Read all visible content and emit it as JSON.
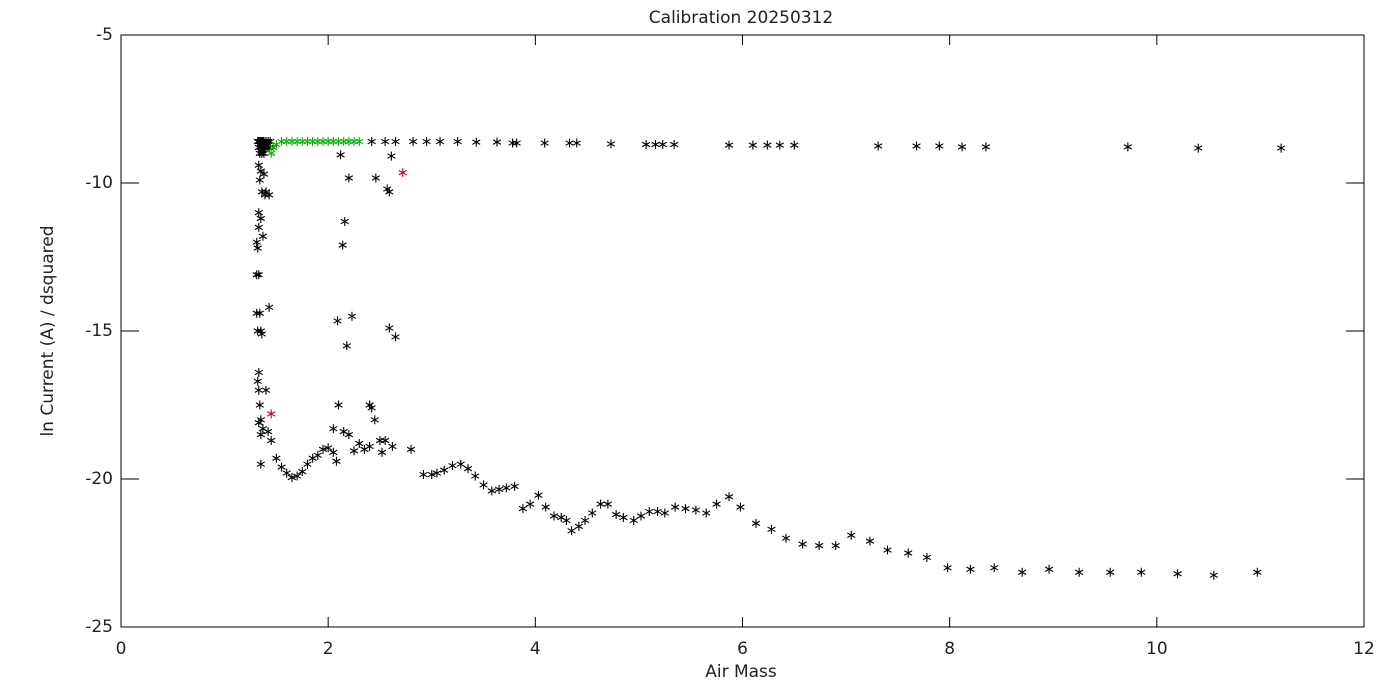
{
  "chart_data": {
    "type": "scatter",
    "title": "Calibration 20250312",
    "x_label": "Air Mass",
    "y_label": "ln Current (A) / dsquared",
    "xlim": [
      0,
      12
    ],
    "ylim": [
      -25,
      -5
    ],
    "xticks": [
      0,
      2,
      4,
      6,
      8,
      10,
      12
    ],
    "yticks": [
      -25,
      -20,
      -15,
      -10,
      -5
    ],
    "marker": "asterisk",
    "series": [
      {
        "color": "#000000",
        "x": [
          1.32,
          1.33,
          1.34,
          1.35,
          1.36,
          1.37,
          1.38,
          1.4,
          1.42,
          1.44,
          1.33,
          1.35,
          1.37,
          1.39,
          1.41,
          1.43,
          1.34,
          1.36,
          1.38,
          1.33,
          1.35,
          1.34,
          1.36,
          1.33,
          1.35,
          1.37,
          1.39,
          1.43,
          1.31,
          1.33,
          1.32,
          1.33,
          1.34,
          1.35,
          1.36,
          1.33,
          1.35,
          1.38,
          1.4,
          2.42,
          2.55,
          2.65,
          2.82,
          2.95,
          3.08,
          3.25,
          3.43,
          3.63,
          3.78,
          3.82,
          4.09,
          4.33,
          4.4,
          4.73,
          5.07,
          5.16,
          5.23,
          5.34,
          5.87,
          6.1,
          6.24,
          6.36,
          6.5,
          7.31,
          7.68,
          7.9,
          8.12,
          8.35,
          9.72,
          10.4,
          11.2,
          2.61,
          2.2,
          2.46,
          2.57,
          2.59,
          2.12,
          2.16,
          2.14,
          2.23,
          2.09,
          2.18,
          2.59,
          2.65,
          1.43,
          1.31,
          1.32,
          1.31,
          1.35,
          1.37,
          1.45,
          1.5,
          1.55,
          1.6,
          1.65,
          1.7,
          1.75,
          1.8,
          1.85,
          1.9,
          1.95,
          2.0,
          2.05,
          2.08,
          2.05,
          2.1,
          2.15,
          2.2,
          2.25,
          2.3,
          2.35,
          2.4,
          2.42,
          2.45,
          2.4,
          2.5,
          2.52,
          2.55,
          2.62,
          2.8,
          2.92,
          3.0,
          3.05,
          3.12,
          3.2,
          3.28,
          3.35,
          3.42,
          3.5,
          3.58,
          3.65,
          3.72,
          3.8,
          3.88,
          3.95,
          4.03,
          4.1,
          4.18,
          4.25,
          4.3,
          4.35,
          4.42,
          4.48,
          4.55,
          4.63,
          4.7,
          4.78,
          4.85,
          4.95,
          5.02,
          5.1,
          5.18,
          5.25,
          5.35,
          5.45,
          5.55,
          5.65,
          5.75,
          5.87,
          5.98,
          6.13,
          6.28,
          6.42,
          6.58,
          6.74,
          6.9,
          7.05,
          7.23,
          7.4,
          7.6,
          7.78,
          7.98,
          8.2,
          8.43,
          8.7,
          8.96,
          9.25,
          9.55,
          9.85,
          10.2,
          10.55,
          10.97,
          1.33,
          1.32,
          1.34,
          1.33,
          1.35,
          1.4,
          1.42
        ],
        "values": [
          -8.6,
          -8.6,
          -8.6,
          -8.6,
          -8.6,
          -8.6,
          -8.6,
          -8.6,
          -8.6,
          -8.6,
          -8.8,
          -8.8,
          -8.8,
          -8.8,
          -8.8,
          -8.8,
          -9.0,
          -9.0,
          -9.0,
          -9.4,
          -9.6,
          -9.9,
          -10.3,
          -11.0,
          -11.2,
          -11.8,
          -10.4,
          -10.4,
          -12.0,
          -11.5,
          -12.2,
          -13.1,
          -14.4,
          -15.0,
          -15.1,
          -17.0,
          -18.0,
          -9.7,
          -10.3,
          -8.6,
          -8.6,
          -8.6,
          -8.6,
          -8.6,
          -8.6,
          -8.6,
          -8.62,
          -8.62,
          -8.65,
          -8.65,
          -8.65,
          -8.65,
          -8.65,
          -8.68,
          -8.7,
          -8.7,
          -8.7,
          -8.7,
          -8.72,
          -8.72,
          -8.72,
          -8.72,
          -8.72,
          -8.75,
          -8.75,
          -8.75,
          -8.78,
          -8.78,
          -8.78,
          -8.82,
          -8.82,
          -9.09,
          -9.83,
          -9.83,
          -10.2,
          -10.3,
          -9.05,
          -11.3,
          -12.1,
          -14.5,
          -14.66,
          -15.5,
          -14.9,
          -15.2,
          -14.2,
          -14.4,
          -15.0,
          -13.1,
          -19.5,
          -18.3,
          -18.7,
          -19.3,
          -19.6,
          -19.8,
          -19.95,
          -19.9,
          -19.75,
          -19.5,
          -19.3,
          -19.2,
          -19.0,
          -18.95,
          -19.1,
          -19.4,
          -18.3,
          -17.5,
          -18.4,
          -18.5,
          -19.05,
          -18.8,
          -19.0,
          -17.5,
          -17.6,
          -18.0,
          -18.9,
          -18.7,
          -19.1,
          -18.7,
          -18.9,
          -19.0,
          -19.85,
          -19.85,
          -19.8,
          -19.7,
          -19.55,
          -19.5,
          -19.65,
          -19.9,
          -20.2,
          -20.4,
          -20.35,
          -20.3,
          -20.25,
          -21.0,
          -20.85,
          -20.55,
          -20.95,
          -21.25,
          -21.3,
          -21.4,
          -21.75,
          -21.6,
          -21.4,
          -21.15,
          -20.85,
          -20.85,
          -21.2,
          -21.3,
          -21.4,
          -21.25,
          -21.1,
          -21.1,
          -21.15,
          -20.95,
          -21.0,
          -21.05,
          -21.15,
          -20.85,
          -20.6,
          -20.95,
          -21.5,
          -21.7,
          -22.0,
          -22.2,
          -22.25,
          -22.25,
          -21.9,
          -22.1,
          -22.4,
          -22.5,
          -22.65,
          -23.0,
          -23.05,
          -23.0,
          -23.15,
          -23.05,
          -23.15,
          -23.15,
          -23.15,
          -23.2,
          -23.25,
          -23.15,
          -16.4,
          -16.7,
          -17.5,
          -18.1,
          -18.5,
          -17.0,
          -18.4
        ]
      },
      {
        "color": "#00b000",
        "x": [
          1.45,
          1.47,
          1.5,
          1.55,
          1.6,
          1.65,
          1.7,
          1.75,
          1.8,
          1.85,
          1.9,
          1.95,
          2.0,
          2.05,
          2.1,
          2.15,
          2.2,
          2.25,
          2.3
        ],
        "values": [
          -9.0,
          -8.8,
          -8.7,
          -8.6,
          -8.6,
          -8.6,
          -8.6,
          -8.6,
          -8.6,
          -8.6,
          -8.6,
          -8.6,
          -8.6,
          -8.6,
          -8.6,
          -8.6,
          -8.6,
          -8.6,
          -8.6
        ]
      },
      {
        "color": "#c0002a",
        "x": [
          2.72,
          1.45
        ],
        "values": [
          -9.65,
          -17.8
        ]
      }
    ]
  }
}
